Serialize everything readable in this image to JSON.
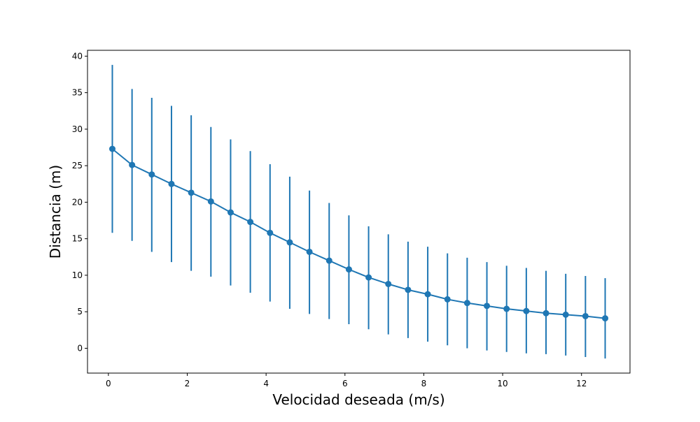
{
  "chart_data": {
    "type": "scatter",
    "title": "",
    "xlabel": "Velocidad deseada (m/s)",
    "ylabel": "Distancia (m)",
    "xlim": [
      -0.53,
      13.23
    ],
    "ylim": [
      -3.4,
      40.8
    ],
    "xticks": [
      "0",
      "2",
      "4",
      "6",
      "8",
      "10",
      "12"
    ],
    "xtick_values": [
      0,
      2,
      4,
      6,
      8,
      10,
      12
    ],
    "yticks": [
      "0",
      "5",
      "10",
      "15",
      "20",
      "25",
      "30",
      "35",
      "40"
    ],
    "ytick_values": [
      0,
      5,
      10,
      15,
      20,
      25,
      30,
      35,
      40
    ],
    "grid": false,
    "legend": "none",
    "color": "#1f77b4",
    "series": [
      {
        "x": [
          0.1,
          0.6,
          1.1,
          1.6,
          2.1,
          2.6,
          3.1,
          3.6,
          4.1,
          4.6,
          5.1,
          5.6,
          6.1,
          6.6,
          7.1,
          7.6,
          8.1,
          8.6,
          9.1,
          9.6,
          10.1,
          10.6,
          11.1,
          11.6,
          12.1,
          12.6
        ],
        "y": [
          27.3,
          25.1,
          23.8,
          22.5,
          21.3,
          20.1,
          18.6,
          17.3,
          15.8,
          14.5,
          13.2,
          12.0,
          10.8,
          9.7,
          8.8,
          8.0,
          7.4,
          6.7,
          6.2,
          5.8,
          5.4,
          5.1,
          4.8,
          4.6,
          4.4,
          4.1
        ],
        "err_low": [
          15.8,
          14.7,
          13.2,
          11.8,
          10.6,
          9.8,
          8.6,
          7.6,
          6.4,
          5.4,
          4.7,
          4.0,
          3.3,
          2.6,
          1.9,
          1.4,
          0.9,
          0.4,
          -0.0,
          -0.3,
          -0.5,
          -0.7,
          -0.8,
          -1.0,
          -1.2,
          -1.4
        ],
        "err_high": [
          38.8,
          35.5,
          34.3,
          33.2,
          31.9,
          30.3,
          28.6,
          27.0,
          25.2,
          23.5,
          21.6,
          19.9,
          18.2,
          16.7,
          15.6,
          14.6,
          13.9,
          13.0,
          12.4,
          11.8,
          11.3,
          11.0,
          10.6,
          10.2,
          9.9,
          9.6
        ]
      }
    ]
  }
}
